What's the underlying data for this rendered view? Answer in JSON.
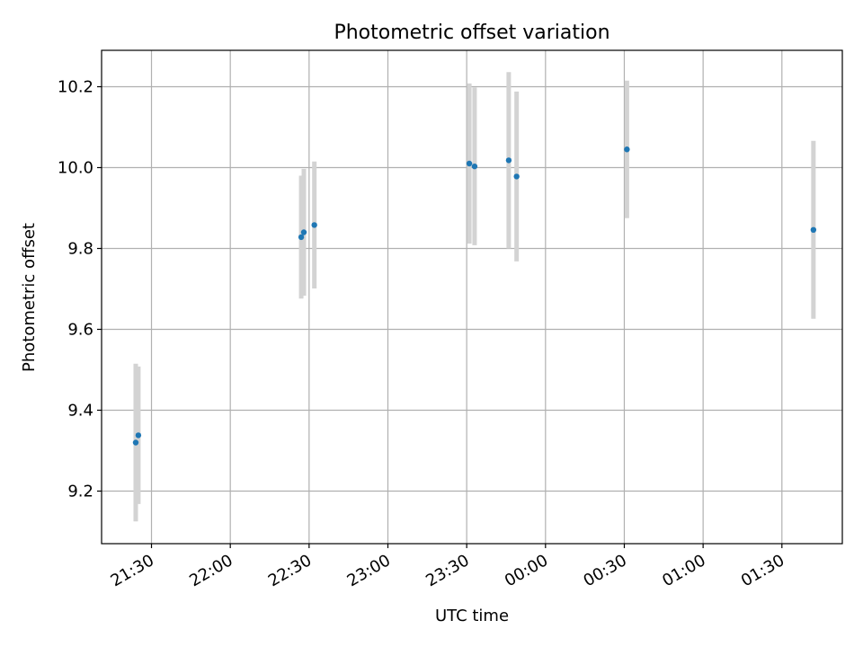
{
  "chart_data": {
    "type": "scatter",
    "title": "Photometric offset variation",
    "xlabel": "UTC time",
    "ylabel": "Photometric offset",
    "x_axis_kind": "time",
    "grid": true,
    "legend": "none",
    "xlim": [
      "21:11",
      "01:53"
    ],
    "ylim": [
      9.07,
      10.29
    ],
    "x_ticks": [
      "21:30",
      "22:00",
      "22:30",
      "23:00",
      "23:30",
      "00:00",
      "00:30",
      "01:00",
      "01:30"
    ],
    "y_ticks": [
      9.2,
      9.4,
      9.6,
      9.8,
      10.0,
      10.2
    ],
    "y_tick_labels": [
      "9.2",
      "9.4",
      "9.6",
      "9.8",
      "10.0",
      "10.2"
    ],
    "series": [
      {
        "marker_color": "#1f77b4",
        "errorbar_color": "#d3d3d3",
        "points": [
          {
            "time": "21:24",
            "value": 9.32,
            "error": 0.195
          },
          {
            "time": "21:25",
            "value": 9.338,
            "error": 0.17
          },
          {
            "time": "22:27",
            "value": 9.828,
            "error": 0.152
          },
          {
            "time": "22:28",
            "value": 9.84,
            "error": 0.157
          },
          {
            "time": "22:32",
            "value": 9.858,
            "error": 0.157
          },
          {
            "time": "23:31",
            "value": 10.01,
            "error": 0.198
          },
          {
            "time": "23:33",
            "value": 10.003,
            "error": 0.195
          },
          {
            "time": "23:46",
            "value": 10.018,
            "error": 0.218
          },
          {
            "time": "23:49",
            "value": 9.978,
            "error": 0.21
          },
          {
            "time": "00:31",
            "value": 10.045,
            "error": 0.17
          },
          {
            "time": "01:42",
            "value": 9.846,
            "error": 0.22
          }
        ]
      }
    ]
  }
}
